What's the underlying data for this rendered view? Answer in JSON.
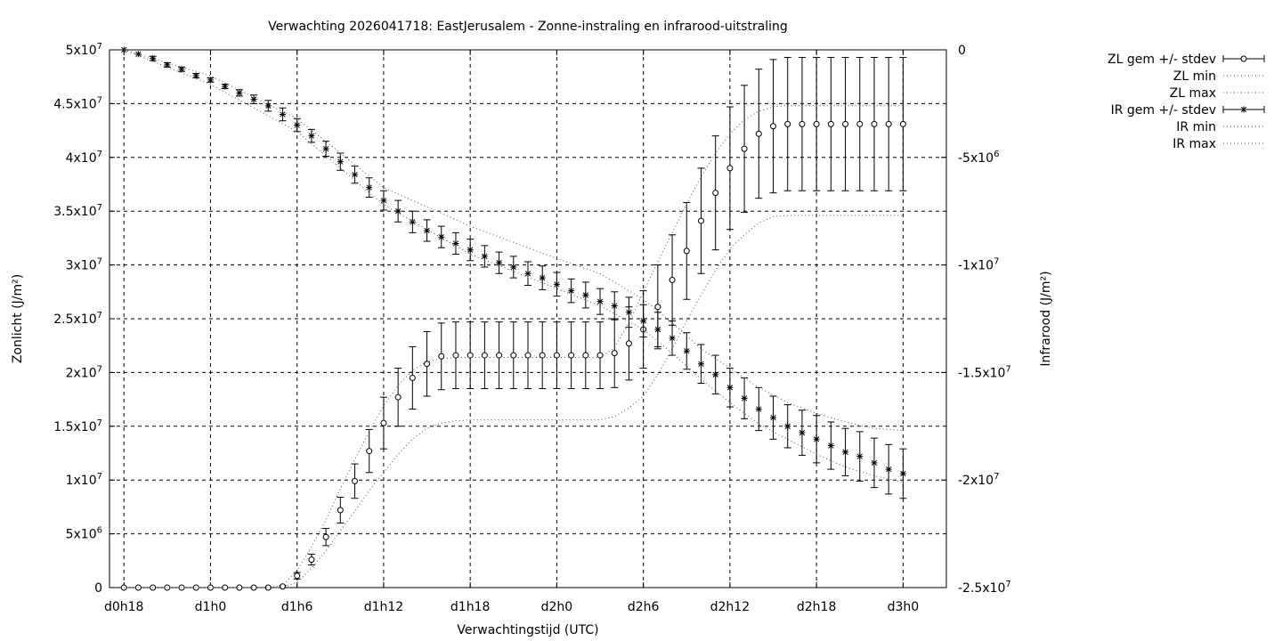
{
  "chart_data": {
    "type": "line",
    "title": "Verwachting 2026041718: EastJerusalem - Zonne-instraling en infrarood-uitstraling",
    "xlabel": "Verwachtingstijd (UTC)",
    "ylabel_left": "Zonlicht (J/m²)",
    "ylabel_right": "Infrarood (J/m²)",
    "x_unit": "hours since d0h18",
    "xlim": [
      -1,
      57
    ],
    "y_left_lim": [
      0,
      50000000
    ],
    "y_right_lim": [
      -25000000,
      0
    ],
    "x_ticks": [
      {
        "x": 0,
        "label": "d0h18"
      },
      {
        "x": 6,
        "label": "d1h0"
      },
      {
        "x": 12,
        "label": "d1h6"
      },
      {
        "x": 18,
        "label": "d1h12"
      },
      {
        "x": 24,
        "label": "d1h18"
      },
      {
        "x": 30,
        "label": "d2h0"
      },
      {
        "x": 36,
        "label": "d2h6"
      },
      {
        "x": 42,
        "label": "d2h12"
      },
      {
        "x": 48,
        "label": "d2h18"
      },
      {
        "x": 54,
        "label": "d3h0"
      }
    ],
    "y_left_ticks": [
      {
        "v": 0,
        "m": "0",
        "e": ""
      },
      {
        "v": 5000000,
        "m": "5x10",
        "e": "6"
      },
      {
        "v": 10000000,
        "m": "1x10",
        "e": "7"
      },
      {
        "v": 15000000,
        "m": "1.5x10",
        "e": "7"
      },
      {
        "v": 20000000,
        "m": "2x10",
        "e": "7"
      },
      {
        "v": 25000000,
        "m": "2.5x10",
        "e": "7"
      },
      {
        "v": 30000000,
        "m": "3x10",
        "e": "7"
      },
      {
        "v": 35000000,
        "m": "3.5x10",
        "e": "7"
      },
      {
        "v": 40000000,
        "m": "4x10",
        "e": "7"
      },
      {
        "v": 45000000,
        "m": "4.5x10",
        "e": "7"
      },
      {
        "v": 50000000,
        "m": "5x10",
        "e": "7"
      }
    ],
    "y_right_ticks": [
      {
        "v": 0,
        "m": "0",
        "e": ""
      },
      {
        "v": -5000000,
        "m": "-5x10",
        "e": "6"
      },
      {
        "v": -10000000,
        "m": "-1x10",
        "e": "7"
      },
      {
        "v": -15000000,
        "m": "-1.5x10",
        "e": "7"
      },
      {
        "v": -20000000,
        "m": "-2x10",
        "e": "7"
      },
      {
        "v": -25000000,
        "m": "-2.5x10",
        "e": "7"
      }
    ],
    "grid": true,
    "legend_position": "top-right outside",
    "series": [
      {
        "name": "ZL gem +/- stdev",
        "axis": "left",
        "marker": "circle",
        "x": [
          0,
          1,
          2,
          3,
          4,
          5,
          6,
          7,
          8,
          9,
          10,
          11,
          12,
          13,
          14,
          15,
          16,
          17,
          18,
          19,
          20,
          21,
          22,
          23,
          24,
          25,
          26,
          27,
          28,
          29,
          30,
          31,
          32,
          33,
          34,
          35,
          36,
          37,
          38,
          39,
          40,
          41,
          42,
          43,
          44,
          45,
          46,
          47,
          48,
          49,
          50,
          51,
          52,
          53,
          54
        ],
        "y": [
          0,
          0,
          0,
          0,
          0,
          0,
          0,
          0,
          0,
          0,
          0,
          100000,
          1100000,
          2600000,
          4700000,
          7200000,
          9900000,
          12700000,
          15300000,
          17700000,
          19500000,
          20800000,
          21500000,
          21600000,
          21600000,
          21600000,
          21600000,
          21600000,
          21600000,
          21600000,
          21600000,
          21600000,
          21600000,
          21600000,
          21800000,
          22700000,
          24000000,
          26100000,
          28600000,
          31300000,
          34100000,
          36700000,
          39000000,
          40800000,
          42200000,
          42900000,
          43100000,
          43100000,
          43100000,
          43100000,
          43100000,
          43100000,
          43100000,
          43100000,
          43100000
        ],
        "err": [
          0,
          0,
          0,
          0,
          0,
          0,
          0,
          0,
          0,
          0,
          0,
          100000,
          300000,
          500000,
          800000,
          1200000,
          1600000,
          2000000,
          2400000,
          2700000,
          2900000,
          3000000,
          3100000,
          3100000,
          3100000,
          3100000,
          3100000,
          3100000,
          3100000,
          3100000,
          3100000,
          3100000,
          3100000,
          3100000,
          3200000,
          3400000,
          3600000,
          3900000,
          4200000,
          4500000,
          4900000,
          5300000,
          5700000,
          5900000,
          6000000,
          6200000,
          6200000,
          6200000,
          6200000,
          6200000,
          6200000,
          6200000,
          6200000,
          6200000,
          6200000
        ]
      },
      {
        "name": "ZL min",
        "axis": "left",
        "style": "dotted",
        "x": [
          0,
          10,
          11,
          12,
          13,
          14,
          15,
          16,
          17,
          18,
          19,
          20,
          21,
          22,
          23,
          24,
          30,
          33,
          34,
          35,
          36,
          37,
          38,
          39,
          40,
          41,
          42,
          43,
          44,
          45,
          46,
          47,
          48,
          54
        ],
        "y": [
          0,
          0,
          0,
          500000,
          1800000,
          3400000,
          5300000,
          7100000,
          9000000,
          10700000,
          12400000,
          13800000,
          14800000,
          15300000,
          15500000,
          15600000,
          15600000,
          15600000,
          15900000,
          16700000,
          17800000,
          19800000,
          22200000,
          24800000,
          27200000,
          29500000,
          31500000,
          32800000,
          33900000,
          34500000,
          34600000,
          34600000,
          34600000,
          34600000
        ]
      },
      {
        "name": "ZL max",
        "axis": "left",
        "style": "dotted",
        "x": [
          0,
          10,
          11,
          12,
          13,
          14,
          15,
          16,
          17,
          18,
          19,
          20,
          21,
          22,
          23,
          24,
          30,
          33,
          34,
          35,
          36,
          37,
          38,
          39,
          40,
          41,
          42,
          43,
          44,
          45,
          46,
          47,
          48,
          54
        ],
        "y": [
          0,
          0,
          200000,
          1600000,
          3800000,
          6300000,
          9200000,
          11900000,
          14500000,
          16900000,
          18800000,
          20200000,
          21000000,
          21300000,
          21400000,
          21400000,
          21400000,
          21400000,
          22300000,
          24600000,
          27500000,
          30300000,
          33000000,
          35700000,
          38200000,
          40400000,
          42200000,
          43500000,
          44300000,
          44700000,
          44800000,
          44800000,
          44800000,
          44800000
        ]
      },
      {
        "name": "IR gem +/- stdev",
        "axis": "right",
        "marker": "star",
        "x": [
          0,
          1,
          2,
          3,
          4,
          5,
          6,
          7,
          8,
          9,
          10,
          11,
          12,
          13,
          14,
          15,
          16,
          17,
          18,
          19,
          20,
          21,
          22,
          23,
          24,
          25,
          26,
          27,
          28,
          29,
          30,
          31,
          32,
          33,
          34,
          35,
          36,
          37,
          38,
          39,
          40,
          41,
          42,
          43,
          44,
          45,
          46,
          47,
          48,
          49,
          50,
          51,
          52,
          53,
          54
        ],
        "y": [
          0,
          -200000,
          -400000,
          -700000,
          -900000,
          -1200000,
          -1400000,
          -1700000,
          -2000000,
          -2300000,
          -2600000,
          -3000000,
          -3500000,
          -4000000,
          -4600000,
          -5200000,
          -5800000,
          -6400000,
          -7000000,
          -7500000,
          -8000000,
          -8400000,
          -8700000,
          -9000000,
          -9300000,
          -9600000,
          -9900000,
          -10100000,
          -10400000,
          -10600000,
          -10900000,
          -11200000,
          -11400000,
          -11700000,
          -11900000,
          -12200000,
          -12600000,
          -13000000,
          -13400000,
          -14000000,
          -14600000,
          -15100000,
          -15700000,
          -16200000,
          -16700000,
          -17100000,
          -17500000,
          -17800000,
          -18100000,
          -18400000,
          -18700000,
          -18900000,
          -19200000,
          -19500000,
          -19700000
        ],
        "err": [
          0,
          0,
          100000,
          100000,
          100000,
          100000,
          100000,
          100000,
          150000,
          200000,
          250000,
          300000,
          300000,
          300000,
          350000,
          400000,
          400000,
          450000,
          450000,
          500000,
          500000,
          500000,
          500000,
          500000,
          500000,
          500000,
          500000,
          500000,
          550000,
          550000,
          550000,
          550000,
          600000,
          600000,
          650000,
          700000,
          750000,
          800000,
          800000,
          850000,
          900000,
          900000,
          900000,
          950000,
          1000000,
          1000000,
          1000000,
          1050000,
          1100000,
          1100000,
          1100000,
          1150000,
          1150000,
          1150000,
          1150000
        ]
      },
      {
        "name": "IR min",
        "axis": "right",
        "style": "dotted",
        "x": [
          0,
          6,
          12,
          18,
          24,
          30,
          33,
          36,
          38,
          40,
          42,
          44,
          46,
          48,
          50,
          52,
          54
        ],
        "y": [
          0,
          -1600000,
          -3800000,
          -7200000,
          -9500000,
          -11100000,
          -11900000,
          -13000000,
          -14100000,
          -15300000,
          -16400000,
          -17400000,
          -18100000,
          -18800000,
          -19400000,
          -19800000,
          -20100000
        ]
      },
      {
        "name": "IR max",
        "axis": "right",
        "style": "dotted",
        "x": [
          0,
          6,
          12,
          18,
          24,
          30,
          33,
          36,
          38,
          40,
          42,
          44,
          46,
          48,
          50,
          52,
          54
        ],
        "y": [
          0,
          -1200000,
          -3200000,
          -6400000,
          -8200000,
          -9700000,
          -10400000,
          -11600000,
          -12700000,
          -13900000,
          -14800000,
          -15700000,
          -16400000,
          -16900000,
          -17300000,
          -17600000,
          -17700000
        ]
      }
    ]
  }
}
